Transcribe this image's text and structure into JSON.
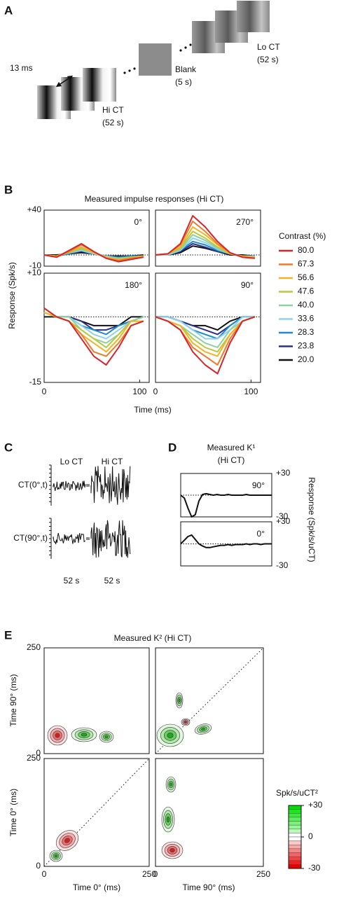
{
  "panel_labels": [
    "A",
    "B",
    "C",
    "D",
    "E"
  ],
  "stimulus": {
    "interval": "13 ms",
    "hi_label": "Hi CT",
    "hi_duration": "(52 s)",
    "blank_label": "Blank",
    "blank_duration": "(5 s)",
    "lo_label": "Lo CT",
    "lo_duration": "(52 s)"
  },
  "chart_data": [
    {
      "type": "line",
      "title": "Measured impulse responses (Hi CT)",
      "xlabel": "Time (ms)",
      "ylabel": "Response (Spk/s)",
      "x": [
        0,
        13,
        26,
        39,
        52,
        65,
        78,
        91,
        104
      ],
      "xlim": [
        0,
        110
      ],
      "xticks": [
        0,
        100
      ],
      "legend": {
        "title": "Contrast (%)",
        "entries": [
          {
            "name": "80.0",
            "color": "#d7262b"
          },
          {
            "name": "67.3",
            "color": "#f07a2a"
          },
          {
            "name": "56.6",
            "color": "#f2b324"
          },
          {
            "name": "47.6",
            "color": "#b9c93a"
          },
          {
            "name": "40.0",
            "color": "#8fd0a2"
          },
          {
            "name": "33.6",
            "color": "#8dd2f0"
          },
          {
            "name": "28.3",
            "color": "#1f8cc6"
          },
          {
            "name": "23.8",
            "color": "#2d2f8a"
          },
          {
            "name": "20.0",
            "color": "#111111"
          }
        ]
      },
      "rows": [
        {
          "ylim": [
            -10,
            40
          ],
          "yticks": [
            {
              "value": 40,
              "label": "+40"
            },
            -10
          ],
          "panels": [
            {
              "label": "0°",
              "series": [
                [
                  0,
                  -2,
                  4,
                  10,
                  3,
                  -3,
                  -6,
                  -4,
                  -2
                ],
                [
                  0,
                  -2,
                  3,
                  9,
                  3,
                  -3,
                  -5,
                  -3,
                  -2
                ],
                [
                  0,
                  -1,
                  3,
                  7,
                  2,
                  -2,
                  -4,
                  -3,
                  -1
                ],
                [
                  0,
                  -1,
                  2,
                  6,
                  2,
                  -2,
                  -4,
                  -2,
                  -1
                ],
                [
                  0,
                  -1,
                  2,
                  5,
                  2,
                  -2,
                  -3,
                  -2,
                  -1
                ],
                [
                  0,
                  -1,
                  2,
                  4,
                  1,
                  -1,
                  -3,
                  -2,
                  -1
                ],
                [
                  0,
                  -1,
                  1,
                  4,
                  1,
                  -1,
                  -2,
                  -1,
                  -1
                ],
                [
                  0,
                  -1,
                  1,
                  3,
                  1,
                  -1,
                  -2,
                  -1,
                  -1
                ],
                [
                  0,
                  0,
                  1,
                  2,
                  1,
                  -1,
                  -1,
                  -1,
                  0
                ]
              ]
            },
            {
              "label": "270°",
              "series": [
                [
                  0,
                  1,
                  10,
                  35,
                  25,
                  12,
                  2,
                  -2,
                  -3
                ],
                [
                  0,
                  1,
                  9,
                  30,
                  21,
                  10,
                  2,
                  -2,
                  -3
                ],
                [
                  0,
                  1,
                  7,
                  25,
                  18,
                  9,
                  1,
                  -1,
                  -2
                ],
                [
                  0,
                  1,
                  6,
                  21,
                  15,
                  7,
                  1,
                  -1,
                  -2
                ],
                [
                  0,
                  1,
                  5,
                  18,
                  13,
                  6,
                  1,
                  -1,
                  -2
                ],
                [
                  0,
                  0,
                  4,
                  15,
                  11,
                  5,
                  1,
                  -1,
                  -1
                ],
                [
                  0,
                  0,
                  4,
                  12,
                  9,
                  4,
                  1,
                  -1,
                  -1
                ],
                [
                  0,
                  0,
                  3,
                  10,
                  7,
                  3,
                  1,
                  -1,
                  -1
                ],
                [
                  0,
                  0,
                  2,
                  8,
                  6,
                  3,
                  0,
                  0,
                  -1
                ]
              ]
            }
          ]
        },
        {
          "ylim": [
            -15,
            10
          ],
          "yticks": [
            {
              "value": 10,
              "label": "+10"
            },
            -15
          ],
          "panels": [
            {
              "label": "180°",
              "series": [
                [
                  2,
                  0,
                  -1,
                  -5,
                  -9,
                  -11,
                  -7,
                  -2,
                  -1
                ],
                [
                  2,
                  0,
                  -1,
                  -4,
                  -8,
                  -9,
                  -6,
                  -2,
                  -1
                ],
                [
                  1,
                  0,
                  -1,
                  -4,
                  -6,
                  -8,
                  -5,
                  -1,
                  -1
                ],
                [
                  1,
                  0,
                  -1,
                  -3,
                  -5,
                  -7,
                  -4,
                  -1,
                  -1
                ],
                [
                  1,
                  0,
                  0,
                  -3,
                  -5,
                  -6,
                  -4,
                  -1,
                  0
                ],
                [
                  1,
                  0,
                  0,
                  -2,
                  -4,
                  -5,
                  -3,
                  -1,
                  0
                ],
                [
                  1,
                  0,
                  0,
                  -2,
                  -3,
                  -4,
                  -2,
                  -1,
                  0
                ],
                [
                  1,
                  0,
                  0,
                  -1,
                  -3,
                  -3,
                  -2,
                  -1,
                  0
                ],
                [
                  0,
                  0,
                  0,
                  -1,
                  -2,
                  -2,
                  -2,
                  0,
                  0
                ]
              ]
            },
            {
              "label": "90°",
              "series": [
                [
                  0,
                  -1,
                  -3,
                  -8,
                  -11,
                  -13,
                  -6,
                  -1,
                  0
                ],
                [
                  0,
                  -1,
                  -3,
                  -7,
                  -9,
                  -11,
                  -5,
                  -1,
                  0
                ],
                [
                  0,
                  -1,
                  -2,
                  -6,
                  -8,
                  -9,
                  -4,
                  -1,
                  0
                ],
                [
                  0,
                  -1,
                  -2,
                  -5,
                  -7,
                  -8,
                  -4,
                  -1,
                  0
                ],
                [
                  0,
                  -1,
                  -2,
                  -4,
                  -6,
                  -7,
                  -3,
                  -1,
                  0
                ],
                [
                  0,
                  0,
                  -1,
                  -3,
                  -5,
                  -5,
                  -3,
                  0,
                  0
                ],
                [
                  0,
                  0,
                  -1,
                  -3,
                  -4,
                  -5,
                  -2,
                  0,
                  0
                ],
                [
                  0,
                  0,
                  -1,
                  -2,
                  -3,
                  -4,
                  -2,
                  0,
                  0
                ],
                [
                  0,
                  0,
                  -1,
                  -2,
                  -2,
                  -3,
                  -1,
                  0,
                  0
                ]
              ]
            }
          ]
        }
      ]
    },
    {
      "type": "trace",
      "column_labels": [
        "Lo CT",
        "Hi CT"
      ],
      "row_labels": [
        "CT(0°,t)",
        "CT(90°,t)"
      ],
      "durations": [
        "52 s",
        "52 s"
      ]
    },
    {
      "type": "line",
      "title": "Measured K¹",
      "subtitle": "(Hi CT)",
      "ylabel": "Response (Spk/s/uCT)",
      "x": [
        0,
        10,
        20,
        30,
        40,
        50,
        60,
        70,
        80,
        90,
        100,
        110,
        120,
        130,
        140,
        150,
        160,
        170,
        180,
        190,
        200,
        210,
        220,
        230,
        240,
        250
      ],
      "xlim": [
        0,
        250
      ],
      "ylim": [
        -30,
        30
      ],
      "yticks": [
        {
          "value": 30,
          "label": "+30"
        },
        -30
      ],
      "panels": [
        {
          "label": "90°",
          "values": [
            0,
            -4,
            -18,
            -30,
            -27,
            -8,
            1,
            2,
            1,
            0,
            1,
            0,
            0,
            1,
            0,
            0,
            0,
            0,
            1,
            0,
            0,
            0,
            0,
            0,
            0,
            0
          ]
        },
        {
          "label": "0°",
          "values": [
            0,
            5,
            10,
            12,
            6,
            0,
            -3,
            -5,
            -5,
            -4,
            -3,
            -2,
            -2,
            -1,
            -2,
            -1,
            -1,
            -1,
            0,
            -1,
            0,
            0,
            -1,
            0,
            0,
            0
          ]
        }
      ]
    },
    {
      "type": "contour",
      "title": "Measured K² (Hi CT)",
      "xlim": [
        0,
        250
      ],
      "ylim": [
        0,
        250
      ],
      "xticks": [
        0,
        250
      ],
      "yticks": [
        0,
        250
      ],
      "xlabels": [
        "Time 0° (ms)",
        "Time 90° (ms)"
      ],
      "ylabels": [
        "Time 90° (ms)",
        "Time 0° (ms)"
      ],
      "colorbar": {
        "title": "Spk/s/uCT²",
        "lim": [
          -30,
          30
        ],
        "ticks": [
          {
            "value": 30,
            "label": "+30"
          },
          0,
          -30
        ]
      }
    }
  ]
}
